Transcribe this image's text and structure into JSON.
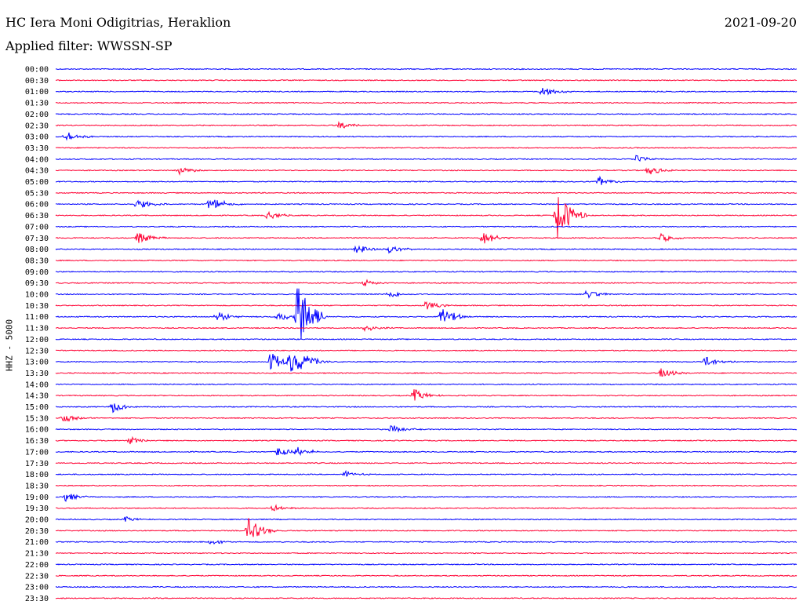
{
  "header": {
    "station": "HC Iera Moni Odigitrias, Heraklion",
    "filter": "Applied filter: WWSSN-SP",
    "date": "2021-09-20"
  },
  "colors": {
    "even_rows": "#0000ff",
    "odd_rows": "#ff0033"
  },
  "chart_data": {
    "type": "line",
    "subtype": "helicorder",
    "channel_label": "HHZ - 5000",
    "rows": [
      "00:00",
      "00:30",
      "01:00",
      "01:30",
      "02:00",
      "02:30",
      "03:00",
      "03:30",
      "04:00",
      "04:30",
      "05:00",
      "05:30",
      "06:00",
      "06:30",
      "07:00",
      "07:30",
      "08:00",
      "08:30",
      "09:00",
      "09:30",
      "10:00",
      "10:30",
      "11:00",
      "11:30",
      "12:00",
      "12:30",
      "13:00",
      "13:30",
      "14:00",
      "14:30",
      "15:00",
      "15:30",
      "16:00",
      "16:30",
      "17:00",
      "17:30",
      "18:00",
      "18:30",
      "19:00",
      "19:30",
      "20:00",
      "20:30",
      "21:00",
      "21:30",
      "22:00",
      "22:30",
      "23:00",
      "23:30"
    ],
    "row_duration_minutes": 30,
    "color_cycle": [
      "blue",
      "red"
    ],
    "events": [
      {
        "row": "01:00",
        "minute": 19.7,
        "amplitude": 0.5
      },
      {
        "row": "02:30",
        "minute": 11.5,
        "amplitude": 0.35
      },
      {
        "row": "03:00",
        "minute": 0.4,
        "amplitude": 0.45
      },
      {
        "row": "04:00",
        "minute": 23.5,
        "amplitude": 0.35
      },
      {
        "row": "04:30",
        "minute": 5.0,
        "amplitude": 0.35
      },
      {
        "row": "04:30",
        "minute": 24.0,
        "amplitude": 0.45
      },
      {
        "row": "05:00",
        "minute": 22.0,
        "amplitude": 0.45
      },
      {
        "row": "06:00",
        "minute": 3.3,
        "amplitude": 0.5
      },
      {
        "row": "06:00",
        "minute": 6.5,
        "amplitude": 0.4
      },
      {
        "row": "06:00",
        "minute": 6.2,
        "amplitude": 0.4
      },
      {
        "row": "06:30",
        "minute": 8.6,
        "amplitude": 0.4
      },
      {
        "row": "06:30",
        "minute": 20.3,
        "amplitude": 2.5
      },
      {
        "row": "07:30",
        "minute": 3.3,
        "amplitude": 0.6
      },
      {
        "row": "07:30",
        "minute": 17.3,
        "amplitude": 0.6
      },
      {
        "row": "07:30",
        "minute": 24.5,
        "amplitude": 0.4
      },
      {
        "row": "08:00",
        "minute": 12.2,
        "amplitude": 0.5
      },
      {
        "row": "08:00",
        "minute": 13.5,
        "amplitude": 0.35
      },
      {
        "row": "09:30",
        "minute": 12.5,
        "amplitude": 0.35
      },
      {
        "row": "10:00",
        "minute": 13.5,
        "amplitude": 0.35
      },
      {
        "row": "10:00",
        "minute": 21.5,
        "amplitude": 0.4
      },
      {
        "row": "10:30",
        "minute": 15.0,
        "amplitude": 0.4
      },
      {
        "row": "11:00",
        "minute": 6.5,
        "amplitude": 0.5
      },
      {
        "row": "11:00",
        "minute": 9.0,
        "amplitude": 0.4
      },
      {
        "row": "11:00",
        "minute": 9.8,
        "amplitude": 3.5
      },
      {
        "row": "11:00",
        "minute": 15.6,
        "amplitude": 1.0
      },
      {
        "row": "11:30",
        "minute": 12.5,
        "amplitude": 0.35
      },
      {
        "row": "13:00",
        "minute": 8.7,
        "amplitude": 0.9
      },
      {
        "row": "13:00",
        "minute": 9.5,
        "amplitude": 0.9
      },
      {
        "row": "13:00",
        "minute": 9.9,
        "amplitude": 0.8
      },
      {
        "row": "13:00",
        "minute": 26.3,
        "amplitude": 0.5
      },
      {
        "row": "13:30",
        "minute": 24.5,
        "amplitude": 0.45
      },
      {
        "row": "14:30",
        "minute": 14.5,
        "amplitude": 0.6
      },
      {
        "row": "15:00",
        "minute": 2.3,
        "amplitude": 0.5
      },
      {
        "row": "15:30",
        "minute": 0.3,
        "amplitude": 0.45
      },
      {
        "row": "16:00",
        "minute": 13.6,
        "amplitude": 0.4
      },
      {
        "row": "16:30",
        "minute": 3.0,
        "amplitude": 0.35
      },
      {
        "row": "17:00",
        "minute": 9.0,
        "amplitude": 0.45
      },
      {
        "row": "17:00",
        "minute": 9.8,
        "amplitude": 0.45
      },
      {
        "row": "18:00",
        "minute": 11.7,
        "amplitude": 0.3
      },
      {
        "row": "19:00",
        "minute": 0.4,
        "amplitude": 0.45
      },
      {
        "row": "19:30",
        "minute": 8.8,
        "amplitude": 0.3
      },
      {
        "row": "20:00",
        "minute": 2.8,
        "amplitude": 0.25
      },
      {
        "row": "20:30",
        "minute": 7.8,
        "amplitude": 1.2
      },
      {
        "row": "21:00",
        "minute": 6.3,
        "amplitude": 0.25
      }
    ]
  }
}
